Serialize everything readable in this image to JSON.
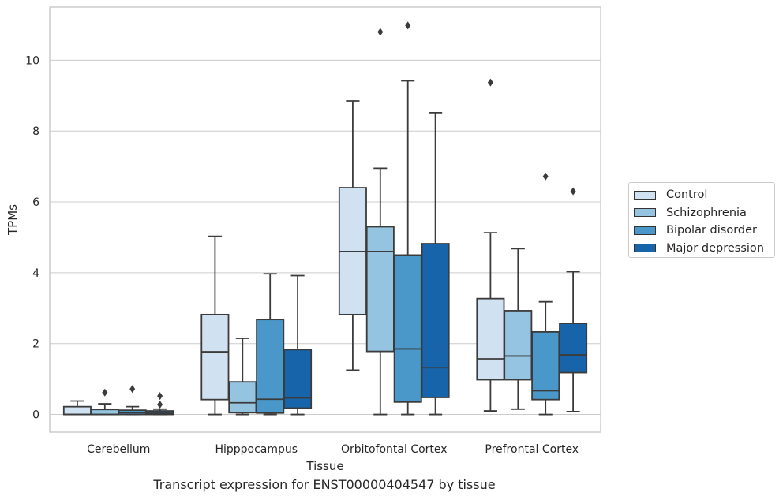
{
  "caption": "Transcript expression for ENST00000404547 by tissue",
  "chart_data": {
    "type": "box",
    "xlabel": "Tissue",
    "ylabel": "TPMs",
    "ylim": [
      -0.5,
      11.5
    ],
    "yticks": [
      0,
      2,
      4,
      6,
      8,
      10
    ],
    "grid": "horizontal",
    "legend_position": "right",
    "categories": [
      "Cerebellum",
      "Hipppocampus",
      "Orbitofontal Cortex",
      "Prefrontal Cortex"
    ],
    "series": [
      {
        "name": "Control",
        "color": "#d0e1f2",
        "boxes": [
          {
            "whisker_low": 0.0,
            "q1": 0.0,
            "median": 0.0,
            "q3": 0.22,
            "whisker_high": 0.38,
            "outliers": []
          },
          {
            "whisker_low": 0.0,
            "q1": 0.42,
            "median": 1.77,
            "q3": 2.82,
            "whisker_high": 5.03,
            "outliers": []
          },
          {
            "whisker_low": 1.25,
            "q1": 2.82,
            "median": 4.6,
            "q3": 6.4,
            "whisker_high": 8.85,
            "outliers": []
          },
          {
            "whisker_low": 0.1,
            "q1": 0.98,
            "median": 1.57,
            "q3": 3.27,
            "whisker_high": 5.13,
            "outliers": [
              9.37
            ]
          }
        ]
      },
      {
        "name": "Schizophrenia",
        "color": "#94c4df",
        "boxes": [
          {
            "whisker_low": 0.0,
            "q1": 0.0,
            "median": 0.0,
            "q3": 0.14,
            "whisker_high": 0.3,
            "outliers": [
              0.62
            ]
          },
          {
            "whisker_low": 0.0,
            "q1": 0.05,
            "median": 0.33,
            "q3": 0.92,
            "whisker_high": 2.15,
            "outliers": []
          },
          {
            "whisker_low": 0.0,
            "q1": 1.78,
            "median": 4.6,
            "q3": 5.3,
            "whisker_high": 6.95,
            "outliers": [
              10.8
            ]
          },
          {
            "whisker_low": 0.15,
            "q1": 0.98,
            "median": 1.65,
            "q3": 2.93,
            "whisker_high": 4.68,
            "outliers": []
          }
        ]
      },
      {
        "name": "Bipolar disorder",
        "color": "#4a98c9",
        "boxes": [
          {
            "whisker_low": 0.0,
            "q1": 0.0,
            "median": 0.05,
            "q3": 0.12,
            "whisker_high": 0.22,
            "outliers": [
              0.72
            ]
          },
          {
            "whisker_low": 0.0,
            "q1": 0.04,
            "median": 0.43,
            "q3": 2.68,
            "whisker_high": 3.97,
            "outliers": []
          },
          {
            "whisker_low": 0.0,
            "q1": 0.35,
            "median": 1.85,
            "q3": 4.5,
            "whisker_high": 9.42,
            "outliers": [
              10.98
            ]
          },
          {
            "whisker_low": 0.0,
            "q1": 0.42,
            "median": 0.67,
            "q3": 2.33,
            "whisker_high": 3.18,
            "outliers": [
              6.72
            ]
          }
        ]
      },
      {
        "name": "Major depression",
        "color": "#1764ab",
        "boxes": [
          {
            "whisker_low": 0.0,
            "q1": 0.0,
            "median": 0.03,
            "q3": 0.1,
            "whisker_high": 0.15,
            "outliers": [
              0.28,
              0.52
            ]
          },
          {
            "whisker_low": 0.0,
            "q1": 0.18,
            "median": 0.47,
            "q3": 1.83,
            "whisker_high": 3.92,
            "outliers": []
          },
          {
            "whisker_low": 0.0,
            "q1": 0.48,
            "median": 1.32,
            "q3": 4.82,
            "whisker_high": 8.52,
            "outliers": []
          },
          {
            "whisker_low": 0.08,
            "q1": 1.18,
            "median": 1.68,
            "q3": 2.57,
            "whisker_high": 4.03,
            "outliers": [
              6.3
            ]
          }
        ]
      }
    ]
  }
}
